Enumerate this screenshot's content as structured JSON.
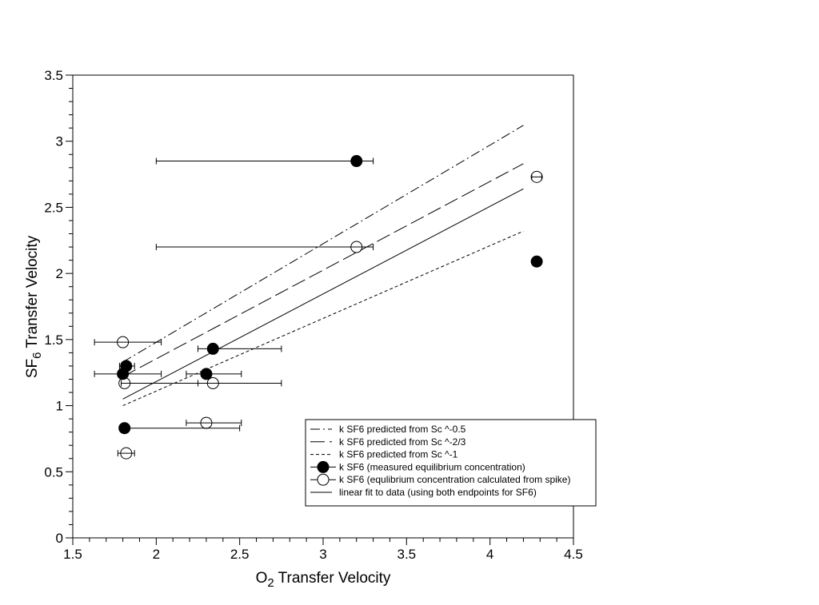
{
  "chart_data": {
    "type": "scatter",
    "title": "",
    "xlabel_main": "O",
    "xlabel_sub": "2",
    "xlabel_rest": " Transfer Velocity",
    "ylabel_main": "SF",
    "ylabel_sub": "6",
    "ylabel_rest": " Transfer Velocity",
    "xlim": [
      1.5,
      4.5
    ],
    "ylim": [
      0,
      3.5
    ],
    "xticks": [
      "1.5",
      "2",
      "2.5",
      "3",
      "3.5",
      "4",
      "4.5"
    ],
    "yticks": [
      "0",
      "0.5",
      "1",
      "1.5",
      "2",
      "2.5",
      "3",
      "3.5"
    ],
    "grid": false,
    "legend_position": "bottom-right",
    "series": [
      {
        "name": "k SF6 predicted from Sc ^-0.5",
        "kind": "line",
        "style": "dashdot",
        "x": [
          1.8,
          4.2
        ],
        "y": [
          1.33,
          3.12
        ]
      },
      {
        "name": "k SF6 predicted from Sc ^-2/3",
        "kind": "line",
        "style": "longdash",
        "x": [
          1.8,
          4.2
        ],
        "y": [
          1.22,
          2.83
        ]
      },
      {
        "name": "k SF6 predicted from Sc ^-1",
        "kind": "line",
        "style": "shortdash",
        "x": [
          1.8,
          4.2
        ],
        "y": [
          1.0,
          2.32
        ]
      },
      {
        "name": "k SF6 (measured equilibrium concentration)",
        "kind": "points",
        "marker": "filled-circle",
        "points": [
          {
            "x": 3.2,
            "y": 2.85,
            "xerr": [
              2.0,
              3.3
            ]
          },
          {
            "x": 4.28,
            "y": 2.09,
            "xerr": null
          },
          {
            "x": 2.34,
            "y": 1.43,
            "xerr": [
              2.25,
              2.75
            ]
          },
          {
            "x": 1.82,
            "y": 1.3,
            "xerr": [
              1.78,
              1.87
            ]
          },
          {
            "x": 1.8,
            "y": 1.24,
            "xerr": [
              1.63,
              2.03
            ]
          },
          {
            "x": 2.3,
            "y": 1.24,
            "xerr": [
              2.18,
              2.51
            ]
          },
          {
            "x": 1.81,
            "y": 0.83,
            "xerr": [
              1.8,
              2.5
            ]
          }
        ]
      },
      {
        "name": "k SF6 (equlibrium concentration calculated from spike)",
        "kind": "points",
        "marker": "open-circle",
        "points": [
          {
            "x": 4.28,
            "y": 2.73,
            "xerr": [
              4.25,
              4.31
            ]
          },
          {
            "x": 3.2,
            "y": 2.2,
            "xerr": [
              2.0,
              3.3
            ]
          },
          {
            "x": 1.8,
            "y": 1.48,
            "xerr": [
              1.63,
              2.03
            ]
          },
          {
            "x": 1.81,
            "y": 1.17,
            "xerr": [
              1.79,
              2.25
            ]
          },
          {
            "x": 2.34,
            "y": 1.17,
            "xerr": [
              2.25,
              2.75
            ]
          },
          {
            "x": 2.3,
            "y": 0.87,
            "xerr": [
              2.18,
              2.51
            ]
          },
          {
            "x": 1.82,
            "y": 0.64,
            "xerr": [
              1.77,
              1.87
            ]
          }
        ]
      },
      {
        "name": "linear fit to data (using both endpoints for SF6)",
        "kind": "line",
        "style": "solid",
        "x": [
          1.8,
          4.2
        ],
        "y": [
          1.05,
          2.64
        ]
      }
    ]
  }
}
